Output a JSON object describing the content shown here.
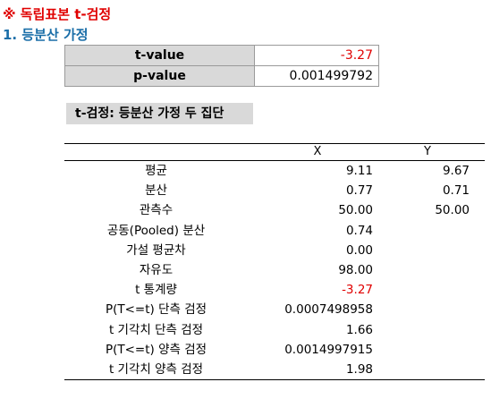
{
  "title": "※ 독립표본 t-검정",
  "subtitle": "1. 등분산 가정",
  "summary": {
    "t_label": "t-value",
    "t_value": "-3.27",
    "p_label": "p-value",
    "p_value": "0.001499792"
  },
  "section_header": "t-검정: 등분산 가정 두 집단",
  "results": {
    "col_x": "X",
    "col_y": "Y",
    "rows": [
      {
        "label": "평균",
        "x": "9.11",
        "y": "9.67"
      },
      {
        "label": "분산",
        "x": "0.77",
        "y": "0.71"
      },
      {
        "label": "관측수",
        "x": "50.00",
        "y": "50.00"
      },
      {
        "label": "공동(Pooled) 분산",
        "x": "0.74",
        "y": ""
      },
      {
        "label": "가설 평균차",
        "x": "0.00",
        "y": ""
      },
      {
        "label": "자유도",
        "x": "98.00",
        "y": ""
      },
      {
        "label": "t 통계량",
        "x": "-3.27",
        "y": ""
      },
      {
        "label": "P(T<=t) 단측 검정",
        "x": "0.0007498958",
        "y": ""
      },
      {
        "label": "t 기각치 단측 검정",
        "x": "1.66",
        "y": ""
      },
      {
        "label": "P(T<=t) 양측 검정",
        "x": "0.0014997915",
        "y": ""
      },
      {
        "label": "t 기각치 양측 검정",
        "x": "1.98",
        "y": ""
      }
    ]
  },
  "colors": {
    "title": "#e00000",
    "subtitle": "#1a6ea8",
    "negative": "#e00000",
    "header_fill": "#d9d9d9"
  }
}
